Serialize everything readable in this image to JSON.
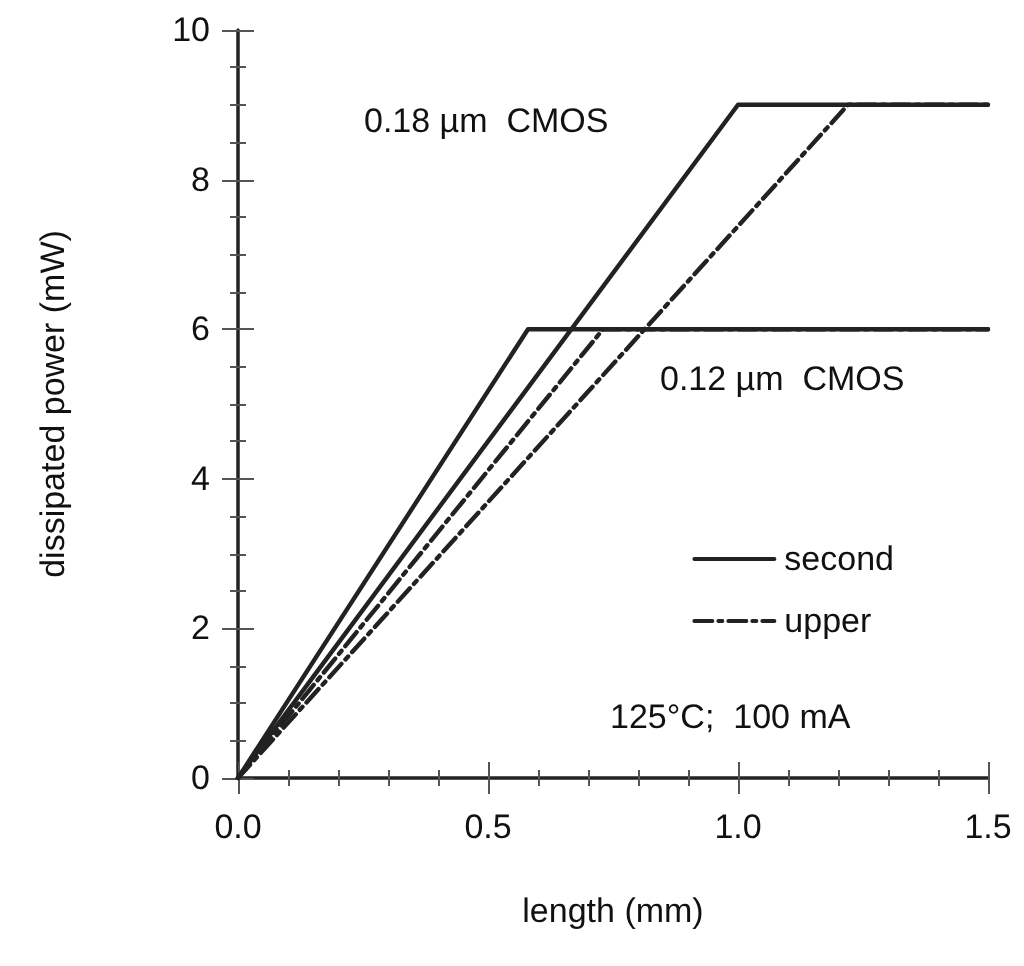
{
  "chart_data": {
    "type": "line",
    "xlabel": "length (mm)",
    "ylabel": "dissipated power (mW)",
    "xlim": [
      0,
      1.5
    ],
    "xticks": [
      {
        "value": 0,
        "label": "0.0"
      },
      0.5,
      {
        "value": 1,
        "label": "1.0"
      },
      1.5
    ],
    "ylim": [
      0,
      10
    ],
    "yticks": [
      0,
      2,
      4,
      6,
      8,
      10
    ],
    "grid": false,
    "legend": "right",
    "marker": "none",
    "series": [
      {
        "name": "second",
        "color": "#222222",
        "line_style": "solid",
        "x": [
          0,
          1.0,
          1.5
        ],
        "values": [
          0,
          9,
          9
        ]
      },
      {
        "name": "upper",
        "color": "#222222",
        "line_style": "dashdot",
        "x": [
          0,
          1.22,
          1.5
        ],
        "values": [
          0,
          9,
          9
        ]
      },
      {
        "color": "#222222",
        "line_style": "solid",
        "x": [
          0,
          0.58,
          1.5
        ],
        "values": [
          0,
          6,
          6
        ]
      },
      {
        "color": "#222222",
        "line_style": "dashdot",
        "x": [
          0,
          0.73,
          1.5
        ],
        "values": [
          0,
          6,
          6
        ]
      }
    ],
    "annotations": [
      "0.18 µm  CMOS",
      "0.12 µm  CMOS",
      "125°C;  100 mA"
    ]
  }
}
